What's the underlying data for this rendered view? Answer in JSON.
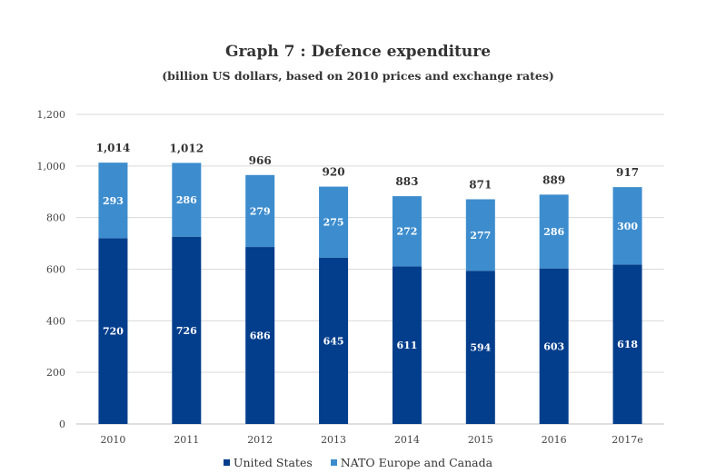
{
  "chart_data": {
    "type": "stacked-bar",
    "title": "Graph 7 : Defence expenditure",
    "subtitle": "(billion US dollars, based on 2010 prices and exchange rates)",
    "categories": [
      "2010",
      "2011",
      "2012",
      "2013",
      "2014",
      "2015",
      "2016",
      "2017e"
    ],
    "series": [
      {
        "name": "United States",
        "values": [
          720,
          726,
          686,
          645,
          611,
          594,
          603,
          618
        ],
        "color": "#033e8c"
      },
      {
        "name": "NATO Europe and Canada",
        "values": [
          293,
          286,
          279,
          275,
          272,
          277,
          286,
          300
        ],
        "color": "#3d8dce"
      }
    ],
    "totals": [
      "1,014",
      "1,012",
      "966",
      "920",
      "883",
      "871",
      "889",
      "917"
    ],
    "ylim": [
      0,
      1200
    ],
    "yticks": [
      0,
      200,
      400,
      600,
      800,
      1000,
      1200
    ],
    "ytick_labels": [
      "0",
      "200",
      "400",
      "600",
      "800",
      "1,000",
      "1,200"
    ],
    "grid": true,
    "legend_position": "bottom",
    "xlabel": "",
    "ylabel": ""
  }
}
